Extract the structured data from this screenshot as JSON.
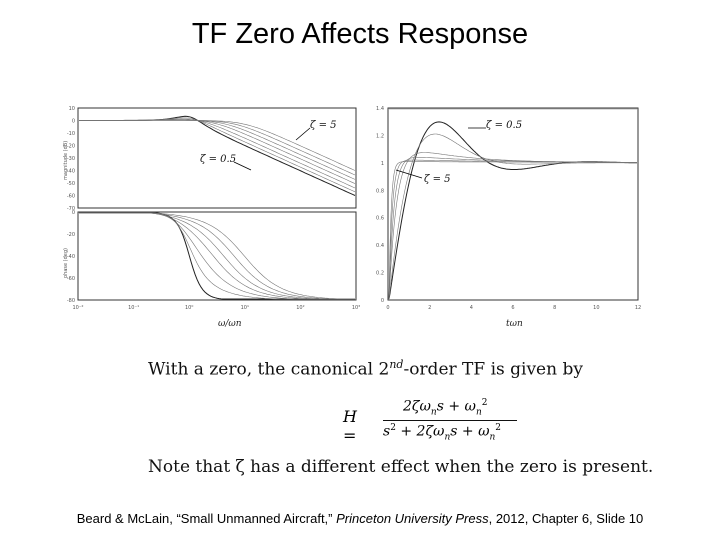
{
  "slide": {
    "title": "TF Zero Affects Response",
    "text_line1_main": "With a zero, the canonical 2",
    "text_line1_sup": "nd",
    "text_line1_tail": "-order TF is given by",
    "eq_lhs": "H =",
    "eq_num": "2ζω",
    "eq_num_tail": "s + ω",
    "eq_den": "s",
    "eq_den_tail": " + 2ζω",
    "eq_den_tail2": "s + ω",
    "line2": "Note that ζ has a different effect when the zero is present.",
    "footer_a": "Beard & McLain, “Small Unmanned Aircraft,”",
    "footer_b": "Princeton University Press",
    "footer_c": ", 2012,   Chapter 6, Slide 10"
  },
  "figure": {
    "bode_mag_ylabel": "magnitude (dB)",
    "bode_phase_ylabel": "phase (deg)",
    "bode_xlabel": "ω/ωn",
    "bode_mag_yticks": [
      "10",
      "0",
      "-10",
      "-20",
      "-30",
      "-40",
      "-50",
      "-60",
      "-70"
    ],
    "bode_phase_yticks": [
      "0",
      "-20",
      "-40",
      "-60",
      "-80"
    ],
    "bode_xticks": [
      "10⁻²",
      "10⁻¹",
      "10⁰",
      "10¹",
      "10²",
      "10³"
    ],
    "bode_annotations": [
      "ζ = 5",
      "ζ = 0.5"
    ],
    "step_xlabel": "tωn",
    "step_yticks": [
      "1.4",
      "1.2",
      "1",
      "0.8",
      "0.6",
      "0.4",
      "0.2",
      "0"
    ],
    "step_xticks": [
      "0",
      "2",
      "4",
      "6",
      "8",
      "10",
      "12"
    ],
    "step_annotations": [
      "ζ = 0.5",
      "ζ = 5"
    ]
  }
}
